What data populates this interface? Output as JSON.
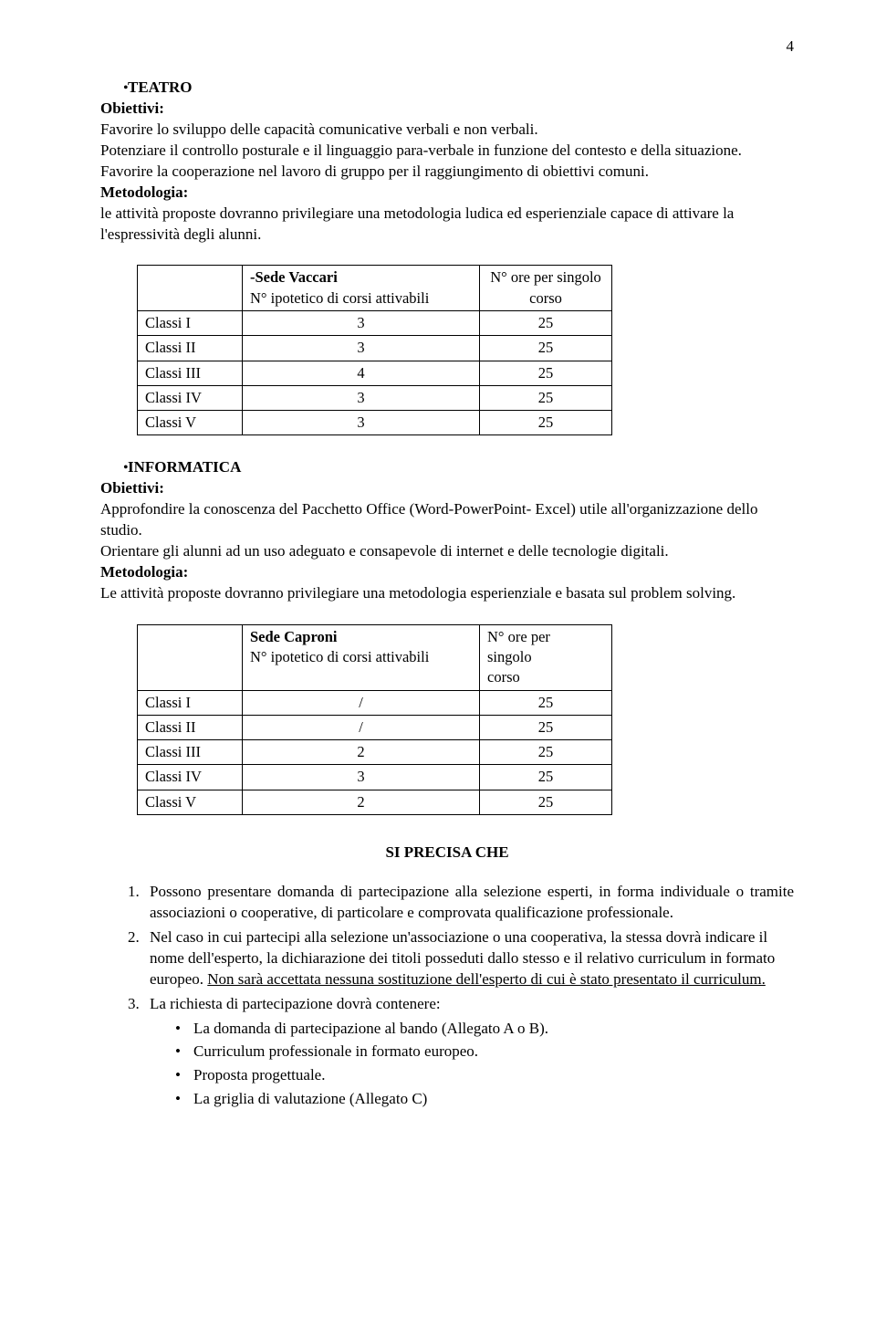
{
  "page_number": "4",
  "teatro": {
    "bullet_label": "TEATRO",
    "obiettivi_label": "Obiettivi:",
    "obj_1": "Favorire lo sviluppo delle capacità comunicative verbali e non verbali.",
    "obj_2": "Potenziare il controllo posturale e il linguaggio para-verbale in funzione del contesto e della situazione.",
    "obj_3": "Favorire la cooperazione nel lavoro di gruppo per il raggiungimento di obiettivi comuni.",
    "metodologia_label": "Metodologia:",
    "metodologia_text": "le attività proposte dovranno privilegiare una metodologia ludica ed esperienziale capace di attivare la l'espressività degli alunni."
  },
  "table1": {
    "header_c2a": "-Sede Vaccari",
    "header_c2b": "N° ipotetico di corsi attivabili",
    "header_c3a": "N° ore per singolo",
    "header_c3b": "corso",
    "rows": [
      {
        "c1": "Classi I",
        "c2": "3",
        "c3": "25"
      },
      {
        "c1": "Classi II",
        "c2": "3",
        "c3": "25"
      },
      {
        "c1": "Classi III",
        "c2": "4",
        "c3": "25"
      },
      {
        "c1": "Classi IV",
        "c2": "3",
        "c3": "25"
      },
      {
        "c1": "Classi V",
        "c2": "3",
        "c3": "25"
      }
    ]
  },
  "informatica": {
    "bullet_label": "INFORMATICA",
    "obiettivi_label": "Obiettivi:",
    "obj_1": "Approfondire la conoscenza del Pacchetto Office (Word-PowerPoint- Excel) utile all'organizzazione dello studio.",
    "obj_2": "Orientare gli alunni ad un uso adeguato e consapevole di internet e delle tecnologie digitali.",
    "metodologia_label": "Metodologia:",
    "metodologia_text": "Le attività proposte dovranno privilegiare una metodologia esperienziale e basata sul problem solving."
  },
  "table2": {
    "header_c2a": "Sede Caproni",
    "header_c2b": "N° ipotetico di corsi attivabili",
    "header_c3a": "N° ore per",
    "header_c3b": "singolo",
    "header_c3c": "corso",
    "rows": [
      {
        "c1": "Classi I",
        "c2": "/",
        "c3": "25"
      },
      {
        "c1": "Classi II",
        "c2": "/",
        "c3": "25"
      },
      {
        "c1": "Classi III",
        "c2": "2",
        "c3": "25"
      },
      {
        "c1": "Classi IV",
        "c2": "3",
        "c3": "25"
      },
      {
        "c1": "Classi V",
        "c2": "2",
        "c3": "25"
      }
    ]
  },
  "precisa": {
    "heading": "SI PRECISA CHE",
    "item1": "Possono presentare domanda di partecipazione alla selezione esperti, in forma individuale o tramite associazioni o cooperative, di particolare e comprovata qualificazione professionale.",
    "item2_a": "Nel caso in cui partecipi alla selezione un'associazione o una cooperativa, la stessa dovrà indicare il nome dell'esperto, la dichiarazione dei titoli posseduti dallo stesso e il relativo curriculum in formato europeo. ",
    "item2_b": "Non sarà accettata nessuna sostituzione dell'esperto di cui è stato presentato il curriculum.",
    "item3": "La richiesta di partecipazione dovrà contenere:",
    "sub1": "La domanda di partecipazione al bando (Allegato A o B).",
    "sub2": "Curriculum professionale in formato europeo.",
    "sub3": "Proposta progettuale.",
    "sub4": "La griglia di valutazione  (Allegato C)"
  },
  "nums": {
    "n1": "1.",
    "n2": "2.",
    "n3": "3."
  },
  "bullet_char": "•"
}
